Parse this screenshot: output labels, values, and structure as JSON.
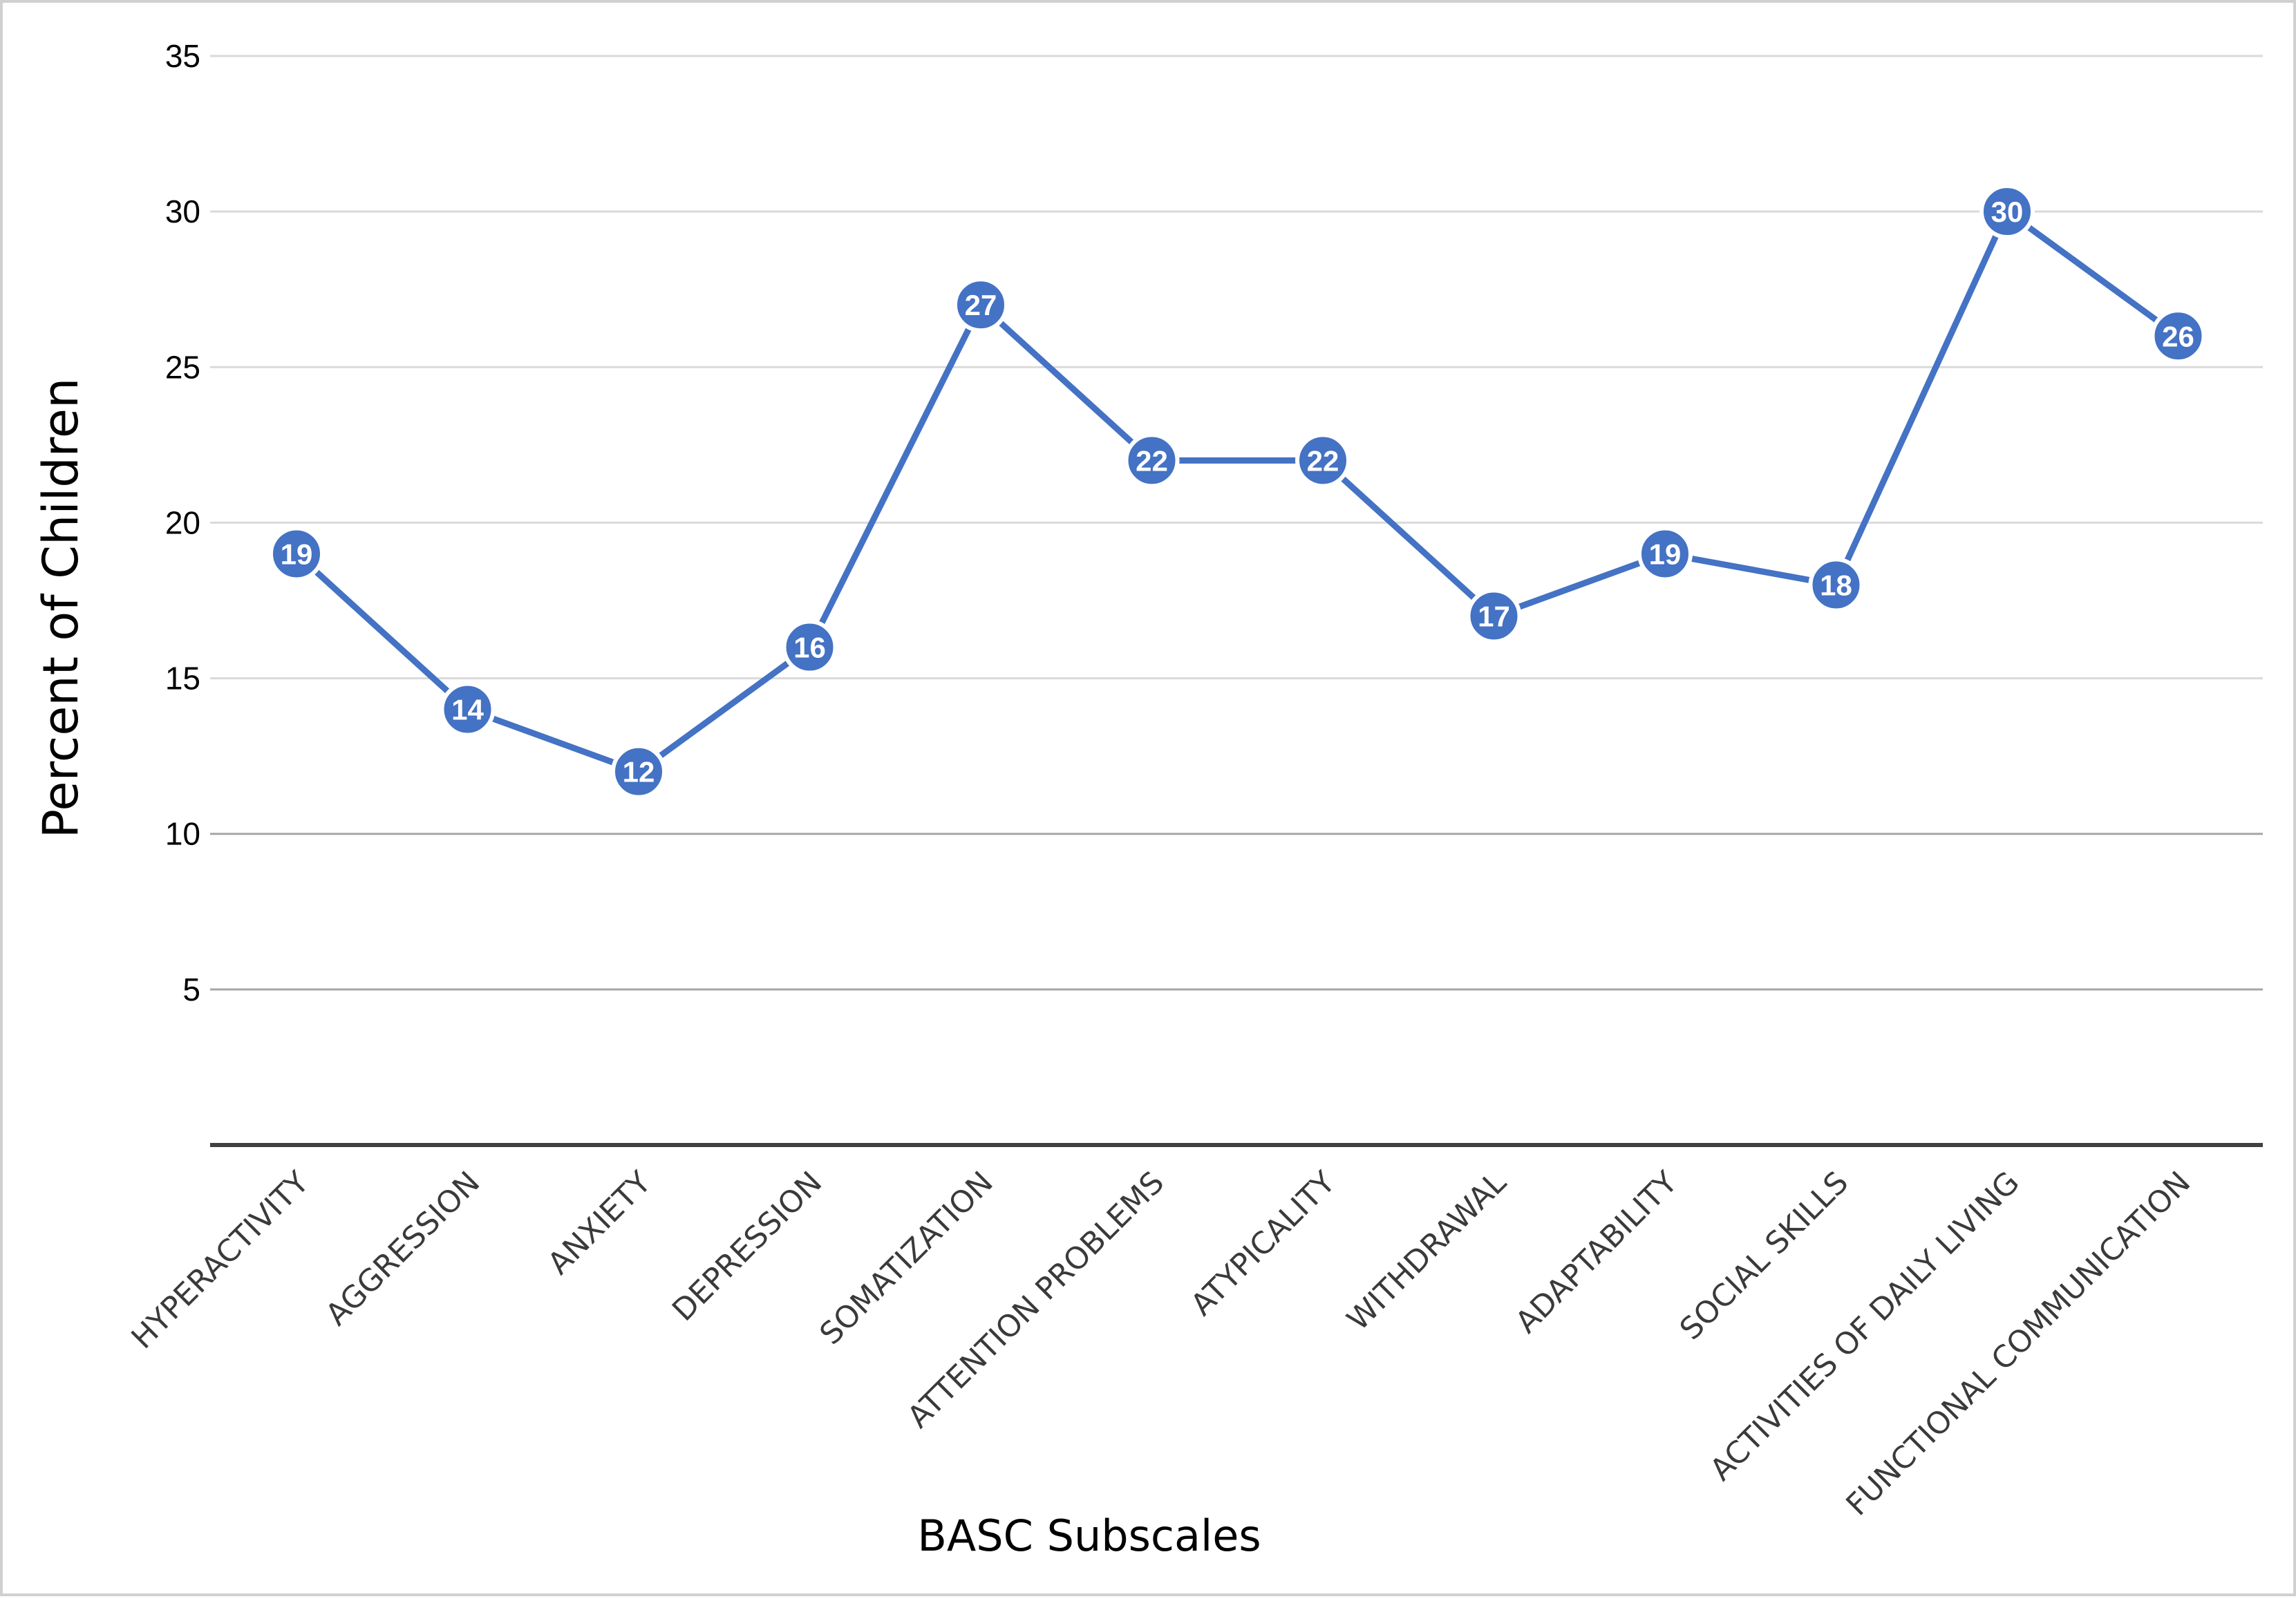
{
  "chart_data": {
    "type": "line",
    "title": "",
    "xlabel": "BASC Subscales",
    "ylabel": "Percent of Children",
    "categories": [
      "HYPERACTIVITY",
      "AGGRESSION",
      "ANXIETY",
      "DEPRESSION",
      "SOMATIZATION",
      "ATTENTION PROBLEMS",
      "ATYPICALITY",
      "WITHDRAWAL",
      "ADAPTABILITY",
      "SOCIAL SKILLS",
      "ACTIVITIES OF DAILY LIVING",
      "FUNCTIONAL COMMUNICATION"
    ],
    "series": [
      {
        "values": [
          19,
          14,
          12,
          16,
          27,
          22,
          22,
          17,
          19,
          18,
          30,
          26
        ],
        "color": "#4472C4"
      }
    ],
    "ylim": [
      0,
      35
    ],
    "yticks": [
      5,
      10,
      15,
      20,
      25,
      30,
      35
    ],
    "grid": true,
    "data_labels": true,
    "legend": "none"
  }
}
